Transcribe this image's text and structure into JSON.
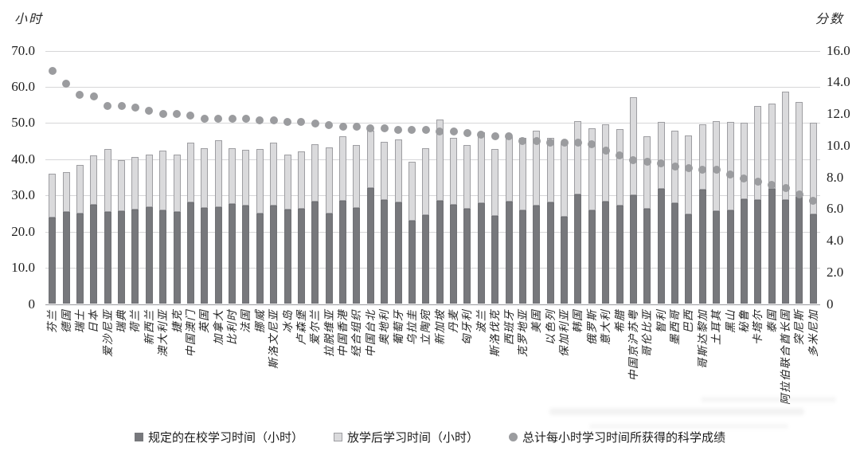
{
  "chart_data": {
    "type": "bar",
    "subtype": "stacked-bars-with-scatter-overlay",
    "title": "",
    "grid": true,
    "legend_position": "bottom",
    "left_axis": {
      "label": "小时",
      "min": 0,
      "max": 70,
      "step": 10,
      "ticks": [
        "70.0",
        "60.0",
        "50.0",
        "40.0",
        "30.0",
        "20.0",
        "10.0",
        "0"
      ]
    },
    "right_axis": {
      "label": "分数",
      "min": 0,
      "max": 16,
      "step": 2,
      "ticks": [
        "16.0",
        "14.0",
        "12.0",
        "10.0",
        "8.0",
        "6.0",
        "4.0",
        "2.0",
        "0"
      ]
    },
    "categories": [
      "芬兰",
      "德国",
      "瑞士",
      "日本",
      "爱沙尼亚",
      "瑞典",
      "荷兰",
      "新西兰",
      "澳大利亚",
      "捷克",
      "中国澳门",
      "英国",
      "加拿大",
      "比利时",
      "法国",
      "挪威",
      "斯洛文尼亚",
      "冰岛",
      "卢森堡",
      "爱尔兰",
      "拉脱维亚",
      "中国香港",
      "经合组织",
      "中国台北",
      "奥地利",
      "葡萄牙",
      "乌拉圭",
      "立陶宛",
      "新加坡",
      "丹麦",
      "匈牙利",
      "波兰",
      "斯洛伐克",
      "西班牙",
      "克罗地亚",
      "美国",
      "以色列",
      "保加利亚",
      "韩国",
      "俄罗斯",
      "意大利",
      "希腊",
      "中国京沪苏粤",
      "哥伦比亚",
      "智利",
      "墨西哥",
      "巴西",
      "哥斯达黎加",
      "土耳其",
      "黑山",
      "秘鲁",
      "卡塔尔",
      "泰国",
      "阿拉伯联合酋长国",
      "突尼斯",
      "多米尼加"
    ],
    "series": [
      {
        "name": "规定的在校学习时间（小时）",
        "render": "bar-stack",
        "axis": "left",
        "color": "#77787c",
        "values": [
          23.8,
          25.4,
          24.9,
          27.4,
          25.5,
          25.7,
          26.1,
          26.7,
          25.8,
          25.5,
          28.0,
          26.5,
          26.8,
          27.6,
          27.1,
          24.9,
          27.1,
          26.0,
          26.4,
          28.2,
          25.0,
          28.5,
          26.5,
          32.0,
          28.8,
          28.0,
          23.0,
          24.5,
          28.5,
          27.3,
          26.2,
          27.8,
          24.3,
          28.2,
          25.8,
          27.2,
          28.0,
          24.2,
          30.2,
          25.8,
          28.2,
          27.1,
          30.1,
          26.4,
          31.9,
          27.8,
          24.7,
          31.5,
          25.7,
          25.8,
          28.9,
          28.8,
          31.7,
          28.8,
          29.5,
          24.7
        ]
      },
      {
        "name": "放学后学习时间（小时）",
        "render": "bar-stack",
        "axis": "left",
        "color": "#dadadc",
        "values": [
          12.2,
          11.0,
          13.6,
          13.7,
          17.4,
          14.1,
          14.6,
          14.6,
          16.6,
          15.8,
          16.5,
          16.5,
          18.4,
          15.5,
          15.4,
          18.0,
          17.4,
          15.2,
          15.8,
          16.0,
          18.3,
          17.9,
          17.5,
          15.8,
          16.0,
          17.4,
          16.2,
          18.6,
          22.4,
          18.6,
          17.8,
          19.7,
          18.6,
          17.9,
          20.0,
          20.6,
          18.0,
          20.2,
          20.4,
          22.7,
          21.5,
          21.2,
          27.1,
          19.9,
          18.5,
          20.1,
          21.9,
          18.1,
          24.8,
          24.5,
          21.2,
          25.9,
          23.6,
          29.8,
          26.3,
          25.3
        ]
      },
      {
        "name": "总计每小时学习时间所获得的科学成绩",
        "render": "scatter",
        "axis": "right",
        "color": "#9b9c9f",
        "values": [
          14.7,
          13.9,
          13.2,
          13.1,
          12.5,
          12.5,
          12.4,
          12.2,
          12.0,
          12.0,
          11.9,
          11.7,
          11.7,
          11.7,
          11.7,
          11.6,
          11.6,
          11.5,
          11.5,
          11.4,
          11.3,
          11.2,
          11.2,
          11.1,
          11.1,
          11.0,
          11.0,
          11.0,
          10.9,
          10.9,
          10.8,
          10.7,
          10.6,
          10.6,
          10.3,
          10.3,
          10.2,
          10.2,
          10.2,
          10.1,
          9.7,
          9.4,
          9.1,
          9.0,
          8.9,
          8.7,
          8.6,
          8.5,
          8.5,
          8.2,
          7.9,
          7.7,
          7.5,
          7.3,
          6.9,
          6.5
        ]
      }
    ]
  }
}
